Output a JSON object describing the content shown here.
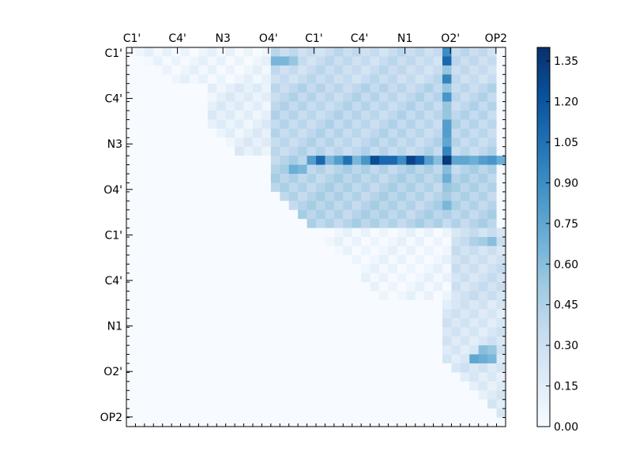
{
  "chart_data": {
    "type": "heatmap",
    "title": "",
    "xlabel": "",
    "ylabel": "",
    "tick_labels": [
      "C1'",
      "C4'",
      "N3",
      "O4'",
      "C1'",
      "C4'",
      "N1",
      "O2'",
      "OP2"
    ],
    "grid_size": 42,
    "value_range": [
      0,
      1.4
    ],
    "colorbar": {
      "ticks": [
        "0.00",
        "0.15",
        "0.30",
        "0.45",
        "0.60",
        "0.75",
        "0.90",
        "1.05",
        "1.20",
        "1.35"
      ],
      "values": [
        0,
        0.15,
        0.3,
        0.45,
        0.6,
        0.75,
        0.9,
        1.05,
        1.2,
        1.35
      ],
      "colormap": [
        "#f7fbff",
        "#deebf7",
        "#c6dbef",
        "#9ecae1",
        "#6baed6",
        "#4292c6",
        "#2171b5",
        "#08519c",
        "#08306b"
      ]
    },
    "pattern": "upper-triangular; zero below diagonal",
    "blocks": [
      {
        "rows": [
          0,
          3
        ],
        "cols": [
          1,
          15
        ],
        "value": 0.06
      },
      {
        "rows": [
          0,
          3
        ],
        "cols": [
          16,
          40
        ],
        "value": 0.33
      },
      {
        "rows": [
          4,
          11
        ],
        "cols": [
          9,
          15
        ],
        "value": 0.13
      },
      {
        "rows": [
          4,
          11
        ],
        "cols": [
          16,
          40
        ],
        "value": 0.38
      },
      {
        "rows": [
          12,
          19
        ],
        "cols": [
          16,
          40
        ],
        "value": 0.42
      },
      {
        "rows": [
          20,
          27
        ],
        "cols": [
          22,
          40
        ],
        "value": 0.05
      },
      {
        "rows": [
          20,
          27
        ],
        "cols": [
          36,
          41
        ],
        "value": 0.28
      },
      {
        "rows": [
          28,
          35
        ],
        "cols": [
          35,
          41
        ],
        "value": 0.22
      },
      {
        "rows": [
          36,
          41
        ],
        "cols": [
          36,
          41
        ],
        "value": 0.18
      }
    ],
    "hot_cells": [
      {
        "row": 12,
        "cols": [
          20,
          21,
          22,
          23,
          24,
          25,
          26,
          27,
          28,
          29,
          30,
          31,
          32,
          33,
          34,
          35,
          36,
          37,
          38,
          39,
          40,
          41
        ],
        "values": [
          0.8,
          1.1,
          0.65,
          0.8,
          1.05,
          0.65,
          0.85,
          1.25,
          1.1,
          1.1,
          0.9,
          1.3,
          1.15,
          0.8,
          0.6,
          1.35,
          0.75,
          0.75,
          0.7,
          0.8,
          0.85,
          0.7
        ]
      },
      {
        "col": 35,
        "rows": [
          0,
          1,
          2,
          3,
          4,
          5,
          6,
          7,
          8,
          9,
          10,
          11,
          12,
          13,
          14,
          15,
          16,
          17,
          18,
          19
        ],
        "values": [
          0.9,
          1.1,
          0.55,
          0.95,
          0.55,
          0.85,
          0.55,
          0.55,
          0.8,
          0.8,
          0.75,
          0.95,
          1.35,
          0.6,
          0.7,
          0.55,
          0.5,
          0.65,
          0.45,
          0.35
        ]
      },
      {
        "row": 1,
        "cols": [
          16,
          17,
          18
        ],
        "values": [
          0.65,
          0.65,
          0.55
        ]
      },
      {
        "row": 13,
        "cols": [
          18,
          19
        ],
        "values": [
          0.7,
          0.65
        ]
      },
      {
        "row": 34,
        "cols": [
          38,
          39,
          40
        ],
        "values": [
          0.75,
          0.7,
          0.65
        ]
      },
      {
        "row": 33,
        "cols": [
          39,
          40
        ],
        "values": [
          0.6,
          0.55
        ]
      },
      {
        "row": 21,
        "cols": [
          38,
          39,
          40
        ],
        "values": [
          0.45,
          0.5,
          0.6
        ]
      }
    ]
  }
}
